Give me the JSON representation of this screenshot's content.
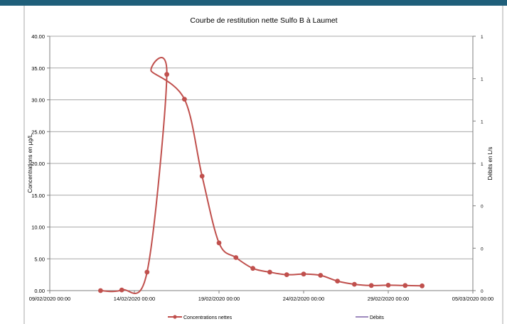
{
  "chart_data": {
    "type": "line",
    "title": "Courbe de restitution nette Sulfo B à Laumet",
    "ylabel": "Concentrations en µg/L",
    "y2label": "Débits en L/s",
    "xlabel": "",
    "ylim": [
      0,
      40
    ],
    "yticks": [
      "0.00",
      "5.00",
      "10.00",
      "15.00",
      "20.00",
      "25.00",
      "30.00",
      "35.00",
      "40.00"
    ],
    "y2ticks": [
      "0",
      "0",
      "0",
      "1",
      "1",
      "1",
      "1"
    ],
    "xlim": [
      "2020-02-09",
      "2020-03-05"
    ],
    "xticks": [
      {
        "date": "2020-02-09",
        "label": "09/02/2020 00:00"
      },
      {
        "date": "2020-02-14",
        "label": "14/02/2020 00:00"
      },
      {
        "date": "2020-02-19",
        "label": "19/02/2020 00:00"
      },
      {
        "date": "2020-02-24",
        "label": "24/02/2020 00:00"
      },
      {
        "date": "2020-02-29",
        "label": "29/02/2020 00:00"
      },
      {
        "date": "2020-03-05",
        "label": "05/03/2020 00:00"
      }
    ],
    "grid": "horizontal",
    "legend_position": "bottom",
    "series": [
      {
        "name": "Concentrations nettes",
        "color": "#c0504d",
        "marker": "circle",
        "x": [
          "2020-02-12 00:00",
          "2020-02-13 06:00",
          "2020-02-14 18:00",
          "2020-02-15 22:00",
          "2020-02-16 23:00",
          "2020-02-18 00:00",
          "2020-02-19 00:00",
          "2020-02-20 00:00",
          "2020-02-21 00:00",
          "2020-02-22 00:00",
          "2020-02-23 00:00",
          "2020-02-24 00:00",
          "2020-02-25 00:00",
          "2020-02-26 00:00",
          "2020-02-27 00:00",
          "2020-02-28 00:00",
          "2020-02-29 00:00",
          "2020-03-01 00:00",
          "2020-03-02 00:00"
        ],
        "x_peak": "2020-02-15 00:00",
        "y_peak": 34.5,
        "y": [
          0.0,
          0.1,
          2.9,
          34.0,
          30.1,
          18.0,
          7.5,
          5.2,
          3.5,
          2.9,
          2.5,
          2.6,
          2.4,
          1.5,
          1.0,
          0.8,
          0.85,
          0.8,
          0.75
        ]
      },
      {
        "name": "Débits",
        "color": "#7f63a8",
        "marker": "none",
        "x": [],
        "y": []
      }
    ]
  }
}
